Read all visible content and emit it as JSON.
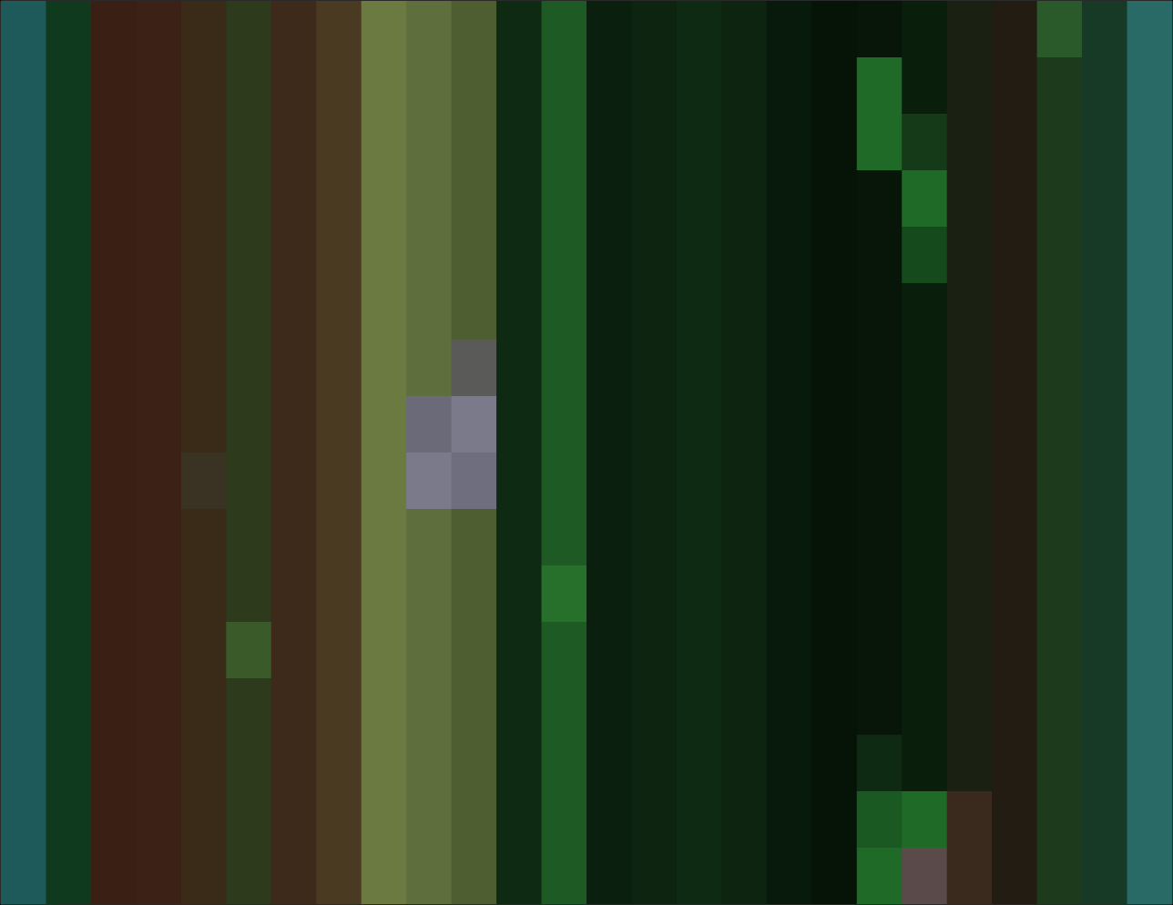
{
  "chart_data": {
    "type": "heatmap",
    "tick_labels": false,
    "xlim": [
      0,
      26
    ],
    "ylim": [
      0,
      16
    ],
    "cells": [
      [
        "#1f5a5a",
        "#0f3a1e",
        "#3a1f14",
        "#3c2216",
        "#3a2a18",
        "#2e3a1c",
        "#3d2a1a",
        "#4a3a22",
        "#6a7a40",
        "#5e6e3c",
        "#4e5e30",
        "#0e2a12",
        "#1e5a24",
        "#0a1f0e",
        "#0c2410",
        "#0e2a12",
        "#0c2410",
        "#081a0c",
        "#061408",
        "#071608",
        "#0a1e0c",
        "#1a2012",
        "#221c12",
        "#2a5a2a",
        "#163a26",
        "#2a6a66"
      ],
      [
        "#1f5a5a",
        "#0f3a1e",
        "#3a1f14",
        "#3c2216",
        "#3a2a18",
        "#2e3a1c",
        "#3d2a1a",
        "#4a3a22",
        "#6a7a40",
        "#5e6e3c",
        "#4e5e30",
        "#0e2a12",
        "#1e5a24",
        "#0a1f0e",
        "#0c2410",
        "#0e2a12",
        "#0c2410",
        "#081a0c",
        "#061408",
        "#1e6a26",
        "#0a1e0c",
        "#1a2012",
        "#221c12",
        "#1e3a1c",
        "#163a26",
        "#2a6a66"
      ],
      [
        "#1f5a5a",
        "#0f3a1e",
        "#3a1f14",
        "#3c2216",
        "#3a2a18",
        "#2e3a1c",
        "#3d2a1a",
        "#4a3a22",
        "#6a7a40",
        "#5e6e3c",
        "#4e5e30",
        "#0e2a12",
        "#1e5a24",
        "#0a1f0e",
        "#0c2410",
        "#0e2a12",
        "#0c2410",
        "#081a0c",
        "#061408",
        "#1e6a26",
        "#143a18",
        "#1a2012",
        "#221c12",
        "#1e3a1c",
        "#163a26",
        "#2a6a66"
      ],
      [
        "#1f5a5a",
        "#0f3a1e",
        "#3a1f14",
        "#3c2216",
        "#3a2a18",
        "#2e3a1c",
        "#3d2a1a",
        "#4a3a22",
        "#6a7a40",
        "#5e6e3c",
        "#4e5e30",
        "#0e2a12",
        "#1e5a24",
        "#0a1f0e",
        "#0c2410",
        "#0e2a12",
        "#0c2410",
        "#081a0c",
        "#061408",
        "#071608",
        "#1e6a26",
        "#1a2012",
        "#221c12",
        "#1e3a1c",
        "#163a26",
        "#2a6a66"
      ],
      [
        "#1f5a5a",
        "#0f3a1e",
        "#3a1f14",
        "#3c2216",
        "#3a2a18",
        "#2e3a1c",
        "#3d2a1a",
        "#4a3a22",
        "#6a7a40",
        "#5e6e3c",
        "#4e5e30",
        "#0e2a12",
        "#1e5a24",
        "#0a1f0e",
        "#0c2410",
        "#0e2a12",
        "#0c2410",
        "#081a0c",
        "#061408",
        "#071608",
        "#144a1c",
        "#1a2012",
        "#221c12",
        "#1e3a1c",
        "#163a26",
        "#2a6a66"
      ],
      [
        "#1f5a5a",
        "#0f3a1e",
        "#3a1f14",
        "#3c2216",
        "#3a2a18",
        "#2e3a1c",
        "#3d2a1a",
        "#4a3a22",
        "#6a7a40",
        "#5e6e3c",
        "#4e5e30",
        "#0e2a12",
        "#1e5a24",
        "#0a1f0e",
        "#0c2410",
        "#0e2a12",
        "#0c2410",
        "#081a0c",
        "#061408",
        "#071608",
        "#0a1e0c",
        "#1a2012",
        "#221c12",
        "#1e3a1c",
        "#163a26",
        "#2a6a66"
      ],
      [
        "#1f5a5a",
        "#0f3a1e",
        "#3a1f14",
        "#3c2216",
        "#3a2a18",
        "#2e3a1c",
        "#3d2a1a",
        "#4a3a22",
        "#6a7a40",
        "#5e6e3c",
        "#5a5a58",
        "#0e2a12",
        "#1e5a24",
        "#0a1f0e",
        "#0c2410",
        "#0e2a12",
        "#0c2410",
        "#081a0c",
        "#061408",
        "#071608",
        "#0a1e0c",
        "#1a2012",
        "#221c12",
        "#1e3a1c",
        "#163a26",
        "#2a6a66"
      ],
      [
        "#1f5a5a",
        "#0f3a1e",
        "#3a1f14",
        "#3c2216",
        "#3a2a18",
        "#2e3a1c",
        "#3d2a1a",
        "#4a3a22",
        "#6a7a40",
        "#6a6a78",
        "#7a7a8a",
        "#0e2a12",
        "#1e5a24",
        "#0a1f0e",
        "#0c2410",
        "#0e2a12",
        "#0c2410",
        "#081a0c",
        "#061408",
        "#071608",
        "#0a1e0c",
        "#1a2012",
        "#221c12",
        "#1e3a1c",
        "#163a26",
        "#2a6a66"
      ],
      [
        "#1f5a5a",
        "#0f3a1e",
        "#3a1f14",
        "#3c2216",
        "#3a3222",
        "#2e3a1c",
        "#3d2a1a",
        "#4a3a22",
        "#6a7a40",
        "#7a7a8a",
        "#6e6e7e",
        "#0e2a12",
        "#1e5a24",
        "#0a1f0e",
        "#0c2410",
        "#0e2a12",
        "#0c2410",
        "#081a0c",
        "#061408",
        "#071608",
        "#0a1e0c",
        "#1a2012",
        "#221c12",
        "#1e3a1c",
        "#163a26",
        "#2a6a66"
      ],
      [
        "#1f5a5a",
        "#0f3a1e",
        "#3a1f14",
        "#3c2216",
        "#3a2a18",
        "#2e3a1c",
        "#3d2a1a",
        "#4a3a22",
        "#6a7a40",
        "#5e6e3c",
        "#4e5e30",
        "#0e2a12",
        "#1e5a24",
        "#0a1f0e",
        "#0c2410",
        "#0e2a12",
        "#0c2410",
        "#081a0c",
        "#061408",
        "#071608",
        "#0a1e0c",
        "#1a2012",
        "#221c12",
        "#1e3a1c",
        "#163a26",
        "#2a6a66"
      ],
      [
        "#1f5a5a",
        "#0f3a1e",
        "#3a1f14",
        "#3c2216",
        "#3a2a18",
        "#2e3a1c",
        "#3d2a1a",
        "#4a3a22",
        "#6a7a40",
        "#5e6e3c",
        "#4e5e30",
        "#0e2a12",
        "#26702c",
        "#0a1f0e",
        "#0c2410",
        "#0e2a12",
        "#0c2410",
        "#081a0c",
        "#061408",
        "#071608",
        "#0a1e0c",
        "#1a2012",
        "#221c12",
        "#1e3a1c",
        "#163a26",
        "#2a6a66"
      ],
      [
        "#1f5a5a",
        "#0f3a1e",
        "#3a1f14",
        "#3c2216",
        "#3a2a18",
        "#3a5a2a",
        "#3d2a1a",
        "#4a3a22",
        "#6a7a40",
        "#5e6e3c",
        "#4e5e30",
        "#0e2a12",
        "#1e5a24",
        "#0a1f0e",
        "#0c2410",
        "#0e2a12",
        "#0c2410",
        "#081a0c",
        "#061408",
        "#071608",
        "#0a1e0c",
        "#1a2012",
        "#221c12",
        "#1e3a1c",
        "#163a26",
        "#2a6a66"
      ],
      [
        "#1f5a5a",
        "#0f3a1e",
        "#3a1f14",
        "#3c2216",
        "#3a2a18",
        "#2e3a1c",
        "#3d2a1a",
        "#4a3a22",
        "#6a7a40",
        "#5e6e3c",
        "#4e5e30",
        "#0e2a12",
        "#1e5a24",
        "#0a1f0e",
        "#0c2410",
        "#0e2a12",
        "#0c2410",
        "#081a0c",
        "#061408",
        "#071608",
        "#0a1e0c",
        "#1a2012",
        "#221c12",
        "#1e3a1c",
        "#163a26",
        "#2a6a66"
      ],
      [
        "#1f5a5a",
        "#0f3a1e",
        "#3a1f14",
        "#3c2216",
        "#3a2a18",
        "#2e3a1c",
        "#3d2a1a",
        "#4a3a22",
        "#6a7a40",
        "#5e6e3c",
        "#4e5e30",
        "#0e2a12",
        "#1e5a24",
        "#0a1f0e",
        "#0c2410",
        "#0e2a12",
        "#0c2410",
        "#081a0c",
        "#061408",
        "#0e2a12",
        "#0a1e0c",
        "#1a2012",
        "#221c12",
        "#1e3a1c",
        "#163a26",
        "#2a6a66"
      ],
      [
        "#1f5a5a",
        "#0f3a1e",
        "#3a1f14",
        "#3c2216",
        "#3a2a18",
        "#2e3a1c",
        "#3d2a1a",
        "#4a3a22",
        "#6a7a40",
        "#5e6e3c",
        "#4e5e30",
        "#0e2a12",
        "#1e5a24",
        "#0a1f0e",
        "#0c2410",
        "#0e2a12",
        "#0c2410",
        "#081a0c",
        "#061408",
        "#1a5a22",
        "#1e6a26",
        "#3a2a1e",
        "#221c12",
        "#1e3a1c",
        "#163a26",
        "#2a6a66"
      ],
      [
        "#1f5a5a",
        "#0f3a1e",
        "#3a1f14",
        "#3c2216",
        "#3a2a18",
        "#2e3a1c",
        "#3d2a1a",
        "#4a3a22",
        "#6a7a40",
        "#5e6e3c",
        "#4e5e30",
        "#0e2a12",
        "#1e5a24",
        "#0a1f0e",
        "#0c2410",
        "#0e2a12",
        "#0c2410",
        "#081a0c",
        "#061408",
        "#1e6a26",
        "#5a4a4a",
        "#3a2a1e",
        "#221c12",
        "#1e3a1c",
        "#163a26",
        "#2a6a66"
      ]
    ]
  }
}
